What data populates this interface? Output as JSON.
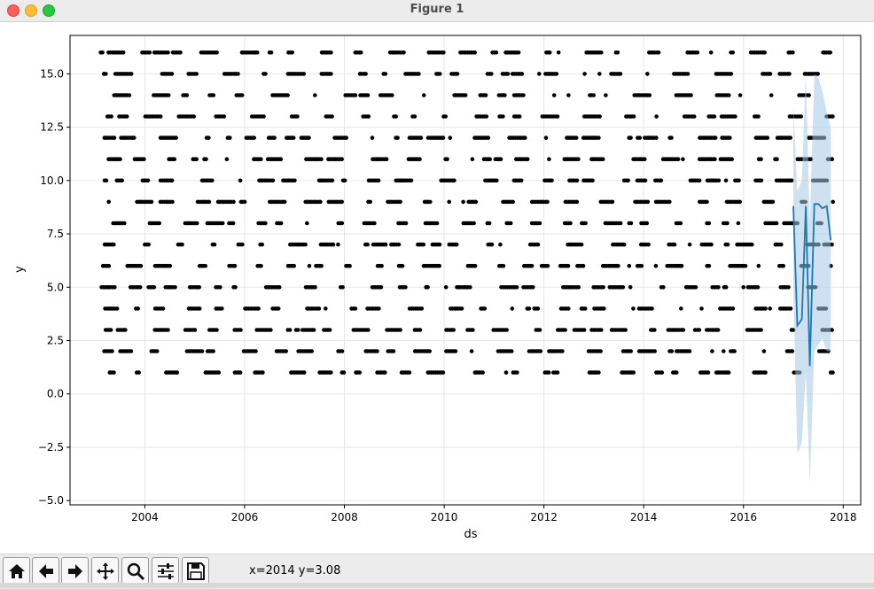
{
  "window": {
    "title": "Figure 1"
  },
  "status": {
    "coords": "x=2014 y=3.08"
  },
  "toolbar": {
    "buttons": [
      "home-icon",
      "back-icon",
      "forward-icon",
      "pan-icon",
      "zoom-icon",
      "configure-icon",
      "save-icon"
    ]
  },
  "chart_data": {
    "type": "scatter",
    "xlabel": "ds",
    "ylabel": "y",
    "xlim": [
      2002.5,
      2018.35
    ],
    "ylim": [
      -5.2,
      16.8
    ],
    "xticks": [
      "2004",
      "2006",
      "2008",
      "2010",
      "2012",
      "2014",
      "2016",
      "2018"
    ],
    "yticks": [
      "−5.0",
      "−2.5",
      "0.0",
      "2.5",
      "5.0",
      "7.5",
      "10.0",
      "12.5",
      "15.0"
    ],
    "grid": true,
    "observed": {
      "marker_color": "#000000",
      "x_range": [
        2003.1,
        2017.8
      ],
      "y_levels": [
        1,
        2,
        3,
        4,
        5,
        6,
        7,
        8,
        9,
        10,
        11,
        12,
        13,
        14,
        15,
        16
      ],
      "note_density": "daily observations, integer y in 1..16"
    },
    "forecast": {
      "color": "#1f77b4",
      "band_color": "#a6c8e3",
      "x": [
        2017.0,
        2017.08,
        2017.17,
        2017.25,
        2017.33,
        2017.42,
        2017.5,
        2017.58,
        2017.67,
        2017.75
      ],
      "yhat": [
        8.8,
        3.2,
        3.5,
        8.8,
        1.3,
        8.9,
        8.9,
        8.7,
        8.8,
        7.2
      ],
      "lower": [
        5.0,
        -2.8,
        -2.3,
        1.0,
        -4.2,
        2.0,
        2.3,
        2.6,
        2.0,
        2.0
      ],
      "upper": [
        13.5,
        9.5,
        10.0,
        15.0,
        8.0,
        15.0,
        14.8,
        14.2,
        13.2,
        12.5
      ]
    }
  }
}
